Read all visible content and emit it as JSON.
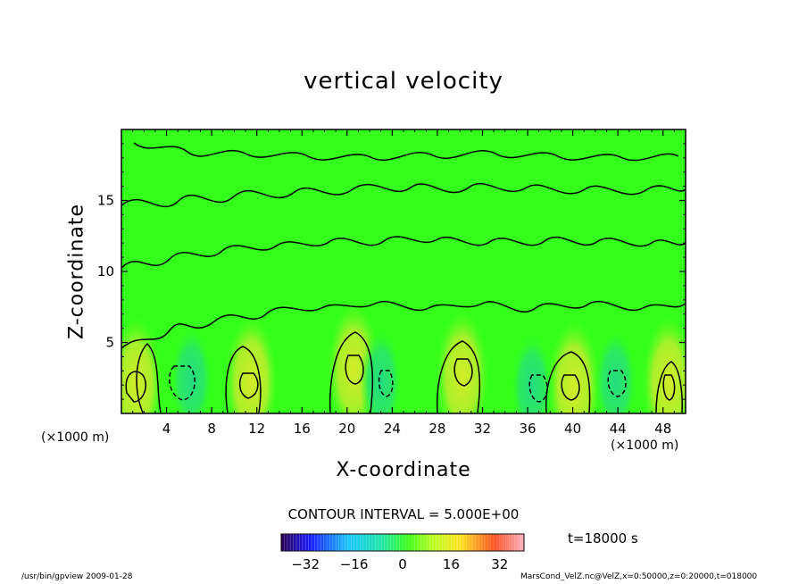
{
  "chart_data": {
    "type": "heatmap",
    "title": "vertical velocity",
    "xlabel": "X-coordinate",
    "ylabel": "Z-coordinate",
    "x_unit": "(×1000 m)",
    "xlim": [
      0,
      50
    ],
    "ylim": [
      0,
      20
    ],
    "x_ticks": [
      4,
      8,
      12,
      16,
      20,
      24,
      28,
      32,
      36,
      40,
      44,
      48
    ],
    "y_ticks": [
      5,
      10,
      15
    ],
    "contour_interval": "CONTOUR INTERVAL = 5.000E+00",
    "time": "t=18000 s",
    "colorbar": {
      "range": [
        -40,
        40
      ],
      "ticks": [
        -32,
        -16,
        0,
        16,
        32
      ]
    },
    "updraft_cells": [
      {
        "x": 1.3,
        "z": 2.1
      },
      {
        "x": 11.5,
        "z": 2.2
      },
      {
        "x": 20.6,
        "z": 3.1
      },
      {
        "x": 30.2,
        "z": 2.6
      },
      {
        "x": 40.1,
        "z": 1.9
      },
      {
        "x": 48.5,
        "z": 2.2
      }
    ],
    "downdraft_cells": [
      {
        "x": 6.2,
        "z": 2.4
      },
      {
        "x": 23.0,
        "z": 2.2
      },
      {
        "x": 36.4,
        "z": 1.9
      },
      {
        "x": 43.8,
        "z": 2.2
      }
    ]
  },
  "footer": {
    "left": "/usr/bin/gpview   2009-01-28",
    "right": "MarsCond_VelZ.nc@VelZ,x=0:50000,z=0:20000,t=018000"
  },
  "colors": {
    "background_field": "#33ff1a",
    "updraft": "#c8ee2a",
    "downdraft": "#2de06a",
    "contour": "#000000"
  }
}
